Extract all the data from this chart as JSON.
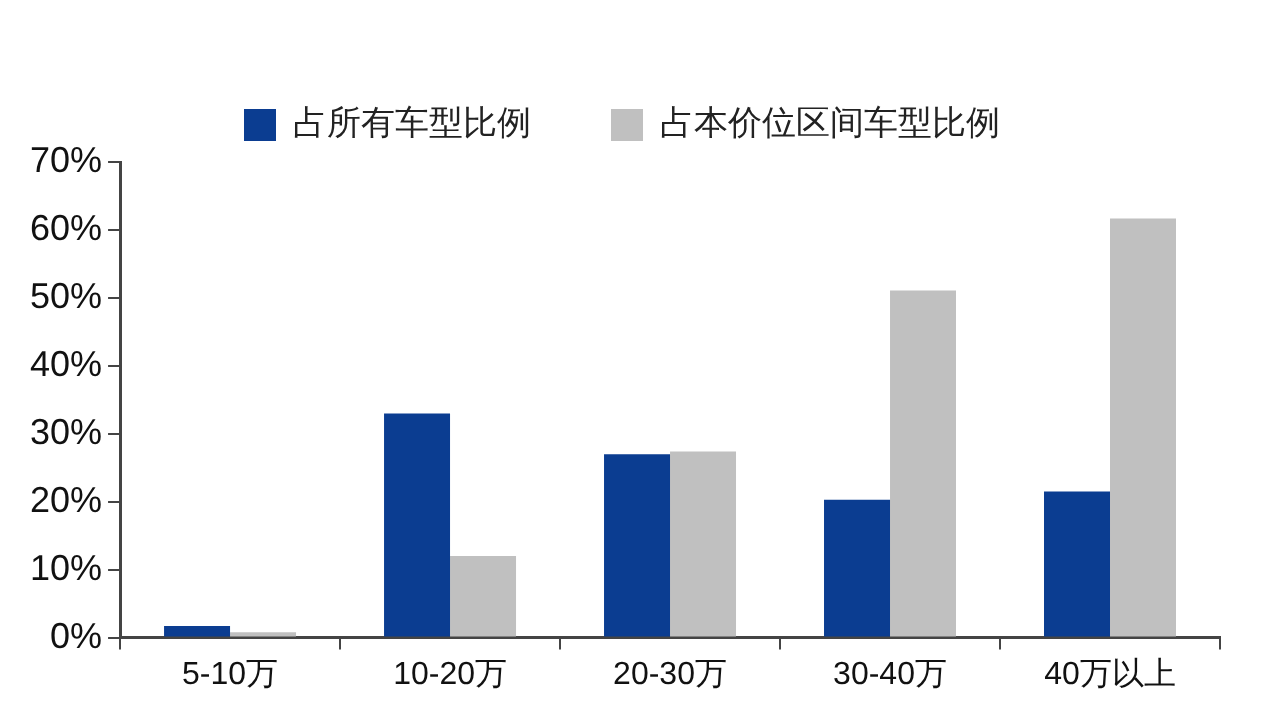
{
  "chart_data": {
    "type": "bar",
    "categories": [
      "5-10万",
      "10-20万",
      "20-30万",
      "30-40万",
      "40万以上"
    ],
    "series": [
      {
        "name": "占所有车型比例",
        "color": "#0b3d91",
        "values": [
          1.7,
          33,
          27,
          20.3,
          21.5
        ]
      },
      {
        "name": "占本价位区间车型比例",
        "color": "#c0c0c0",
        "values": [
          0.8,
          12,
          27.4,
          51.1,
          61.7
        ]
      }
    ],
    "ylim": [
      0,
      70
    ],
    "yticks": [
      {
        "value": 0,
        "label": "0%"
      },
      {
        "value": 10,
        "label": "10%"
      },
      {
        "value": 20,
        "label": "20%"
      },
      {
        "value": 30,
        "label": "30%"
      },
      {
        "value": 40,
        "label": "40%"
      },
      {
        "value": 50,
        "label": "50%"
      },
      {
        "value": 60,
        "label": "60%"
      },
      {
        "value": 70,
        "label": "70%"
      }
    ],
    "grid": false,
    "legend": "top"
  }
}
